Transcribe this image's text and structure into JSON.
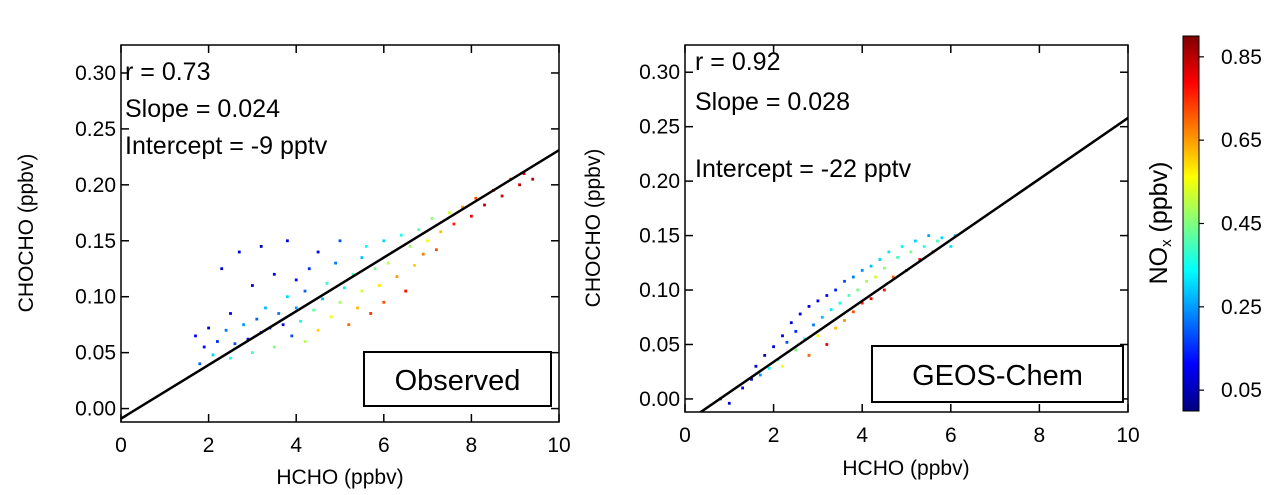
{
  "chart_data": [
    {
      "type": "scatter",
      "panel_label": "Observed",
      "xlabel": "HCHO (ppbv)",
      "ylabel": "CHOCHO (ppbv)",
      "xlim": [
        0,
        10
      ],
      "ylim": [
        -0.012,
        0.325
      ],
      "xticks": [
        0,
        2,
        4,
        6,
        8,
        10
      ],
      "yticks": [
        0.0,
        0.05,
        0.1,
        0.15,
        0.2,
        0.25,
        0.3
      ],
      "xtick_labels": [
        "0",
        "2",
        "4",
        "6",
        "8",
        "10"
      ],
      "ytick_labels": [
        "0.00",
        "0.05",
        "0.10",
        "0.15",
        "0.20",
        "0.25",
        "0.30"
      ],
      "stats": {
        "r": "r = 0.73",
        "slope": "Slope = 0.024",
        "intercept": "Intercept = -9 pptv"
      },
      "fit_line": {
        "slope": 0.024,
        "intercept": -0.009
      },
      "color_variable": "NOx (ppbv)",
      "points": [
        [
          1.7,
          0.065,
          0.1
        ],
        [
          1.8,
          0.04,
          0.2
        ],
        [
          1.9,
          0.055,
          0.12
        ],
        [
          2.0,
          0.072,
          0.08
        ],
        [
          2.1,
          0.048,
          0.3
        ],
        [
          2.2,
          0.06,
          0.15
        ],
        [
          2.3,
          0.125,
          0.08
        ],
        [
          2.4,
          0.07,
          0.22
        ],
        [
          2.5,
          0.045,
          0.35
        ],
        [
          2.5,
          0.085,
          0.1
        ],
        [
          2.6,
          0.058,
          0.18
        ],
        [
          2.7,
          0.14,
          0.07
        ],
        [
          2.8,
          0.075,
          0.25
        ],
        [
          2.9,
          0.062,
          0.12
        ],
        [
          3.0,
          0.11,
          0.09
        ],
        [
          3.0,
          0.05,
          0.4
        ],
        [
          3.1,
          0.08,
          0.2
        ],
        [
          3.2,
          0.068,
          0.14
        ],
        [
          3.2,
          0.145,
          0.06
        ],
        [
          3.3,
          0.09,
          0.28
        ],
        [
          3.4,
          0.072,
          0.16
        ],
        [
          3.5,
          0.12,
          0.1
        ],
        [
          3.5,
          0.055,
          0.45
        ],
        [
          3.6,
          0.085,
          0.22
        ],
        [
          3.7,
          0.075,
          0.12
        ],
        [
          3.8,
          0.1,
          0.3
        ],
        [
          3.8,
          0.15,
          0.08
        ],
        [
          3.9,
          0.065,
          0.18
        ],
        [
          4.0,
          0.09,
          0.25
        ],
        [
          4.0,
          0.115,
          0.12
        ],
        [
          4.1,
          0.078,
          0.35
        ],
        [
          4.2,
          0.105,
          0.2
        ],
        [
          4.2,
          0.06,
          0.5
        ],
        [
          4.3,
          0.125,
          0.15
        ],
        [
          4.4,
          0.088,
          0.42
        ],
        [
          4.5,
          0.14,
          0.1
        ],
        [
          4.5,
          0.07,
          0.6
        ],
        [
          4.6,
          0.098,
          0.28
        ],
        [
          4.7,
          0.112,
          0.38
        ],
        [
          4.8,
          0.082,
          0.55
        ],
        [
          4.9,
          0.13,
          0.22
        ],
        [
          5.0,
          0.095,
          0.48
        ],
        [
          5.0,
          0.15,
          0.18
        ],
        [
          5.1,
          0.108,
          0.33
        ],
        [
          5.2,
          0.075,
          0.7
        ],
        [
          5.3,
          0.12,
          0.4
        ],
        [
          5.4,
          0.09,
          0.62
        ],
        [
          5.5,
          0.135,
          0.28
        ],
        [
          5.5,
          0.105,
          0.52
        ],
        [
          5.6,
          0.145,
          0.35
        ],
        [
          5.7,
          0.085,
          0.75
        ],
        [
          5.8,
          0.125,
          0.45
        ],
        [
          5.9,
          0.11,
          0.58
        ],
        [
          6.0,
          0.15,
          0.3
        ],
        [
          6.0,
          0.095,
          0.72
        ],
        [
          6.1,
          0.13,
          0.5
        ],
        [
          6.2,
          0.14,
          0.4
        ],
        [
          6.3,
          0.118,
          0.65
        ],
        [
          6.4,
          0.155,
          0.36
        ],
        [
          6.5,
          0.105,
          0.78
        ],
        [
          6.6,
          0.145,
          0.48
        ],
        [
          6.7,
          0.128,
          0.6
        ],
        [
          6.8,
          0.16,
          0.42
        ],
        [
          6.9,
          0.138,
          0.68
        ],
        [
          7.0,
          0.15,
          0.55
        ],
        [
          7.1,
          0.17,
          0.46
        ],
        [
          7.2,
          0.142,
          0.72
        ],
        [
          7.3,
          0.158,
          0.62
        ],
        [
          7.5,
          0.175,
          0.52
        ],
        [
          7.6,
          0.165,
          0.76
        ],
        [
          7.8,
          0.18,
          0.66
        ],
        [
          8.0,
          0.172,
          0.8
        ],
        [
          8.1,
          0.188,
          0.72
        ],
        [
          8.3,
          0.182,
          0.84
        ],
        [
          8.5,
          0.195,
          0.78
        ],
        [
          8.7,
          0.19,
          0.83
        ],
        [
          8.9,
          0.205,
          0.8
        ],
        [
          9.1,
          0.2,
          0.84
        ],
        [
          9.2,
          0.21,
          0.82
        ],
        [
          9.4,
          0.205,
          0.85
        ]
      ]
    },
    {
      "type": "scatter",
      "panel_label": "GEOS-Chem",
      "xlabel": "HCHO (ppbv)",
      "ylabel": "CHOCHO (ppbv)",
      "xlim": [
        0,
        10
      ],
      "ylim": [
        -0.012,
        0.325
      ],
      "xticks": [
        0,
        2,
        4,
        6,
        8,
        10
      ],
      "yticks": [
        0.0,
        0.05,
        0.1,
        0.15,
        0.2,
        0.25,
        0.3
      ],
      "xtick_labels": [
        "0",
        "2",
        "4",
        "6",
        "8",
        "10"
      ],
      "ytick_labels": [
        "0.00",
        "0.05",
        "0.10",
        "0.15",
        "0.20",
        "0.25",
        "0.30"
      ],
      "stats": {
        "r": "r = 0.92",
        "slope": "Slope = 0.028",
        "intercept": "Intercept = -22 pptv"
      },
      "fit_line": {
        "slope": 0.028,
        "intercept": -0.022
      },
      "color_variable": "NOx (ppbv)",
      "points": [
        [
          0.8,
          0.0,
          0.05
        ],
        [
          1.0,
          -0.004,
          0.08
        ],
        [
          1.3,
          0.01,
          0.1
        ],
        [
          1.5,
          0.018,
          0.06
        ],
        [
          1.6,
          0.03,
          0.08
        ],
        [
          1.7,
          0.022,
          0.25
        ],
        [
          1.8,
          0.04,
          0.06
        ],
        [
          1.9,
          0.028,
          0.35
        ],
        [
          2.0,
          0.048,
          0.1
        ],
        [
          2.1,
          0.036,
          0.4
        ],
        [
          2.2,
          0.058,
          0.08
        ],
        [
          2.2,
          0.03,
          0.55
        ],
        [
          2.3,
          0.052,
          0.18
        ],
        [
          2.4,
          0.07,
          0.07
        ],
        [
          2.5,
          0.045,
          0.45
        ],
        [
          2.5,
          0.062,
          0.15
        ],
        [
          2.6,
          0.078,
          0.08
        ],
        [
          2.7,
          0.055,
          0.35
        ],
        [
          2.8,
          0.085,
          0.1
        ],
        [
          2.8,
          0.04,
          0.7
        ],
        [
          2.9,
          0.068,
          0.22
        ],
        [
          3.0,
          0.09,
          0.09
        ],
        [
          3.0,
          0.058,
          0.55
        ],
        [
          3.1,
          0.075,
          0.28
        ],
        [
          3.2,
          0.095,
          0.12
        ],
        [
          3.2,
          0.05,
          0.8
        ],
        [
          3.3,
          0.082,
          0.32
        ],
        [
          3.4,
          0.1,
          0.14
        ],
        [
          3.4,
          0.065,
          0.62
        ],
        [
          3.5,
          0.088,
          0.36
        ],
        [
          3.6,
          0.108,
          0.18
        ],
        [
          3.6,
          0.072,
          0.66
        ],
        [
          3.7,
          0.095,
          0.4
        ],
        [
          3.8,
          0.112,
          0.22
        ],
        [
          3.8,
          0.08,
          0.72
        ],
        [
          3.9,
          0.1,
          0.44
        ],
        [
          4.0,
          0.118,
          0.24
        ],
        [
          4.0,
          0.088,
          0.76
        ],
        [
          4.1,
          0.108,
          0.48
        ],
        [
          4.2,
          0.122,
          0.28
        ],
        [
          4.2,
          0.092,
          0.8
        ],
        [
          4.3,
          0.112,
          0.52
        ],
        [
          4.4,
          0.128,
          0.3
        ],
        [
          4.5,
          0.1,
          0.78
        ],
        [
          4.5,
          0.12,
          0.46
        ],
        [
          4.6,
          0.135,
          0.32
        ],
        [
          4.7,
          0.112,
          0.7
        ],
        [
          4.8,
          0.13,
          0.4
        ],
        [
          4.9,
          0.14,
          0.34
        ],
        [
          5.0,
          0.118,
          0.74
        ],
        [
          5.1,
          0.135,
          0.44
        ],
        [
          5.2,
          0.145,
          0.3
        ],
        [
          5.3,
          0.128,
          0.8
        ],
        [
          5.4,
          0.14,
          0.38
        ],
        [
          5.5,
          0.15,
          0.26
        ],
        [
          5.6,
          0.135,
          0.84
        ],
        [
          5.7,
          0.145,
          0.4
        ],
        [
          5.8,
          0.148,
          0.3
        ],
        [
          6.0,
          0.14,
          0.32
        ],
        [
          6.1,
          0.15,
          0.28
        ]
      ]
    }
  ],
  "colorbar": {
    "label_main": "NO",
    "label_sub": "x",
    "label_unit": " (ppbv)",
    "min": 0.0,
    "max": 0.9,
    "ticks": [
      0.05,
      0.25,
      0.45,
      0.65,
      0.85
    ],
    "tick_labels": [
      "0.05",
      "0.25",
      "0.45",
      "0.65",
      "0.85"
    ],
    "colormap": [
      "#00007f",
      "#0000ff",
      "#007fff",
      "#00ffff",
      "#7fff7f",
      "#ffff00",
      "#ff7f00",
      "#ff0000",
      "#7f0000"
    ]
  }
}
